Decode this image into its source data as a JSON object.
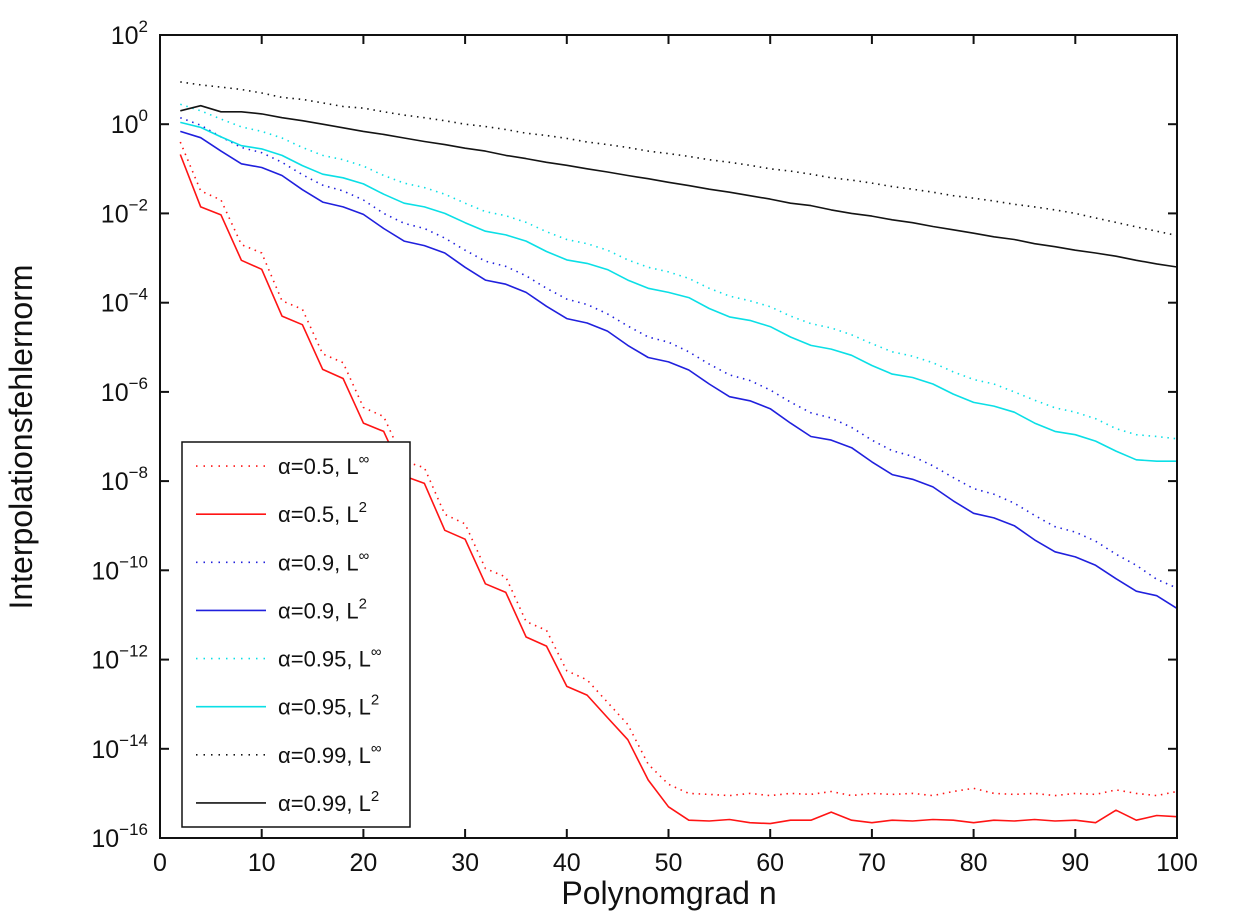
{
  "figure": {
    "background": "#ffffff",
    "axis_color": "#111111",
    "title": ""
  },
  "chart_data": {
    "type": "line",
    "title": "",
    "xlabel": "Polynomgrad n",
    "ylabel": "Interpolationsfehlernorm",
    "xlim": [
      0,
      100
    ],
    "ylim_exponents": [
      -16,
      2
    ],
    "y_scale": "log10",
    "grid": false,
    "legend_position": "lower-left-inside",
    "x_ticks": [
      0,
      10,
      20,
      30,
      40,
      50,
      60,
      70,
      80,
      90,
      100
    ],
    "y_tick_exponents": [
      2,
      0,
      -2,
      -4,
      -6,
      -8,
      -10,
      -12,
      -14,
      -16
    ],
    "x": [
      2,
      4,
      6,
      8,
      10,
      12,
      14,
      16,
      18,
      20,
      22,
      24,
      26,
      28,
      30,
      32,
      34,
      36,
      38,
      40,
      42,
      44,
      46,
      48,
      50,
      52,
      54,
      56,
      58,
      60,
      62,
      64,
      66,
      68,
      70,
      72,
      74,
      76,
      78,
      80,
      82,
      84,
      86,
      88,
      90,
      92,
      94,
      96,
      98,
      100
    ],
    "series": [
      {
        "name": "alpha-05-linf",
        "label_prefix": "α=0.5, L",
        "label_sup": "∞",
        "color": "#ff1414",
        "style": "dotted",
        "values": [
          0.4,
          0.032,
          0.02,
          0.002,
          0.0013,
          0.00011,
          7.1e-05,
          7.1e-06,
          4.5e-06,
          4.5e-07,
          2.8e-07,
          2.8e-08,
          2e-08,
          1.8e-09,
          1.1e-09,
          1.1e-10,
          7.1e-11,
          7.1e-12,
          4.5e-12,
          5.6e-13,
          3.5e-13,
          1.1e-13,
          3.5e-14,
          4.5e-15,
          1.6e-15,
          1e-15,
          9.5e-16,
          8.9e-16,
          1e-15,
          8.9e-16,
          1e-15,
          9.5e-16,
          1.1e-15,
          8.9e-16,
          1e-15,
          9.5e-16,
          1e-15,
          8.9e-16,
          1.1e-15,
          1.3e-15,
          1e-15,
          9.5e-16,
          1e-15,
          8.9e-16,
          1e-15,
          9.5e-16,
          1.2e-15,
          1e-15,
          8.9e-16,
          1.1e-15
        ]
      },
      {
        "name": "alpha-05-l2",
        "label_prefix": "α=0.5, L",
        "label_sup": "2",
        "color": "#ff1414",
        "style": "solid",
        "values": [
          0.21,
          0.014,
          0.0093,
          0.00089,
          0.00056,
          5e-05,
          3.2e-05,
          3.2e-06,
          2e-06,
          2e-07,
          1.3e-07,
          1.3e-08,
          8.9e-09,
          7.9e-10,
          5e-10,
          5e-11,
          3.2e-11,
          3.2e-12,
          2e-12,
          2.5e-13,
          1.6e-13,
          5e-14,
          1.6e-14,
          2e-15,
          5e-16,
          2.5e-16,
          2.4e-16,
          2.6e-16,
          2.2e-16,
          2.1e-16,
          2.5e-16,
          2.5e-16,
          3.8e-16,
          2.5e-16,
          2.2e-16,
          2.5e-16,
          2.4e-16,
          2.6e-16,
          2.5e-16,
          2.2e-16,
          2.5e-16,
          2.4e-16,
          2.6e-16,
          2.4e-16,
          2.5e-16,
          2.2e-16,
          4.2e-16,
          2.5e-16,
          3.2e-16,
          3e-16
        ]
      },
      {
        "name": "alpha-09-linf",
        "label_prefix": "α=0.9, L",
        "label_sup": "∞",
        "color": "#2020dd",
        "style": "dotted",
        "values": [
          1.4,
          0.95,
          0.52,
          0.3,
          0.23,
          0.14,
          0.074,
          0.043,
          0.032,
          0.02,
          0.01,
          0.006,
          0.0046,
          0.0028,
          0.0015,
          0.00085,
          0.00065,
          0.0004,
          0.00021,
          0.00012,
          9.1e-05,
          5.6e-05,
          3e-05,
          1.7e-05,
          1.3e-05,
          7.9e-06,
          4.2e-06,
          2.4e-06,
          1.8e-06,
          1.1e-06,
          5.9e-07,
          3.4e-07,
          2.6e-07,
          1.6e-07,
          8.3e-08,
          4.8e-08,
          3.6e-08,
          2.2e-08,
          1.2e-08,
          6.8e-09,
          5.1e-09,
          3.2e-09,
          1.7e-09,
          9.5e-10,
          7.2e-10,
          4.5e-10,
          2.3e-10,
          1.3e-10,
          6.3e-11,
          4e-11
        ]
      },
      {
        "name": "alpha-09-l2",
        "label_prefix": "α=0.9, L",
        "label_sup": "2",
        "color": "#2020dd",
        "style": "solid",
        "values": [
          0.69,
          0.5,
          0.25,
          0.13,
          0.107,
          0.071,
          0.034,
          0.018,
          0.014,
          0.0095,
          0.0046,
          0.0024,
          0.0019,
          0.0013,
          0.00062,
          0.00032,
          0.00026,
          0.00017,
          8.3e-05,
          4.4e-05,
          3.5e-05,
          2.3e-05,
          1.1e-05,
          5.9e-06,
          4.7e-06,
          3.1e-06,
          1.5e-06,
          7.8e-07,
          6.3e-07,
          4.2e-07,
          2e-07,
          1e-07,
          8.3e-08,
          5.6e-08,
          2.7e-08,
          1.4e-08,
          1.1e-08,
          7.4e-09,
          3.6e-09,
          1.9e-09,
          1.5e-09,
          1e-09,
          4.8e-10,
          2.6e-10,
          2e-10,
          1.3e-10,
          6.5e-11,
          3.4e-11,
          2.7e-11,
          1.4e-11
        ]
      },
      {
        "name": "alpha-095-linf",
        "label_prefix": "α=0.95, L",
        "label_sup": "∞",
        "color": "#0bdfe6",
        "style": "dotted",
        "values": [
          2.8,
          2.0,
          1.3,
          0.87,
          0.69,
          0.49,
          0.3,
          0.2,
          0.16,
          0.115,
          0.071,
          0.048,
          0.038,
          0.027,
          0.017,
          0.011,
          0.0089,
          0.0063,
          0.0039,
          0.0026,
          0.0021,
          0.0015,
          0.00091,
          0.00062,
          0.00049,
          0.00035,
          0.00021,
          0.00014,
          0.00011,
          8.1e-05,
          5e-05,
          3.4e-05,
          2.7e-05,
          1.9e-05,
          1.2e-05,
          7.9e-06,
          6.3e-06,
          4.5e-06,
          2.8e-06,
          1.9e-06,
          1.5e-06,
          1e-06,
          6.5e-07,
          4.4e-07,
          3.5e-07,
          2.5e-07,
          1.5e-07,
          1.1e-07,
          1e-07,
          8.9e-08
        ]
      },
      {
        "name": "alpha-095-l2",
        "label_prefix": "α=0.95, L",
        "label_sup": "2",
        "color": "#0bdfe6",
        "style": "solid",
        "values": [
          1.1,
          0.85,
          0.52,
          0.33,
          0.28,
          0.2,
          0.118,
          0.076,
          0.063,
          0.046,
          0.027,
          0.017,
          0.014,
          0.01,
          0.0062,
          0.004,
          0.0033,
          0.0024,
          0.0014,
          0.00091,
          0.00076,
          0.00055,
          0.00032,
          0.00021,
          0.00017,
          0.00013,
          7.4e-05,
          4.8e-05,
          4e-05,
          2.9e-05,
          1.7e-05,
          1.1e-05,
          9.1e-06,
          6.6e-06,
          3.9e-06,
          2.5e-06,
          2.1e-06,
          1.5e-06,
          8.9e-07,
          5.8e-07,
          4.8e-07,
          3.5e-07,
          2e-07,
          1.3e-07,
          1.1e-07,
          7.9e-08,
          4.7e-08,
          3e-08,
          2.8e-08,
          2.8e-08
        ]
      },
      {
        "name": "alpha-099-linf",
        "label_prefix": "α=0.99, L",
        "label_sup": "∞",
        "color": "#141414",
        "style": "dotted",
        "values": [
          8.9,
          7.6,
          6.8,
          6.0,
          5.0,
          4.0,
          3.6,
          3.0,
          2.5,
          2.3,
          1.9,
          1.6,
          1.4,
          1.2,
          1.0,
          0.89,
          0.76,
          0.63,
          0.56,
          0.48,
          0.4,
          0.35,
          0.3,
          0.25,
          0.22,
          0.19,
          0.16,
          0.14,
          0.12,
          0.1,
          0.089,
          0.076,
          0.063,
          0.056,
          0.048,
          0.04,
          0.035,
          0.03,
          0.025,
          0.022,
          0.019,
          0.016,
          0.014,
          0.012,
          0.01,
          0.0079,
          0.0063,
          0.005,
          0.004,
          0.0032
        ]
      },
      {
        "name": "alpha-099-l2",
        "label_prefix": "α=0.99, L",
        "label_sup": "2",
        "color": "#141414",
        "style": "solid",
        "values": [
          2.0,
          2.6,
          1.9,
          1.9,
          1.7,
          1.4,
          1.2,
          1.0,
          0.83,
          0.69,
          0.59,
          0.49,
          0.41,
          0.35,
          0.29,
          0.25,
          0.2,
          0.17,
          0.14,
          0.12,
          0.1,
          0.085,
          0.071,
          0.06,
          0.05,
          0.042,
          0.035,
          0.03,
          0.025,
          0.021,
          0.017,
          0.015,
          0.012,
          0.01,
          0.0087,
          0.0072,
          0.0062,
          0.0051,
          0.0043,
          0.0036,
          0.003,
          0.0026,
          0.0021,
          0.0018,
          0.0015,
          0.0013,
          0.0011,
          0.00089,
          0.00074,
          0.00063
        ]
      }
    ]
  }
}
